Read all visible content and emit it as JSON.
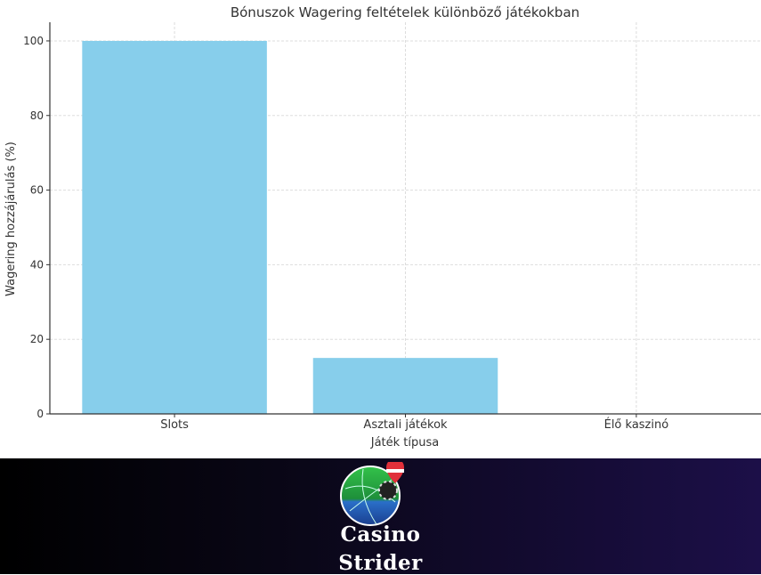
{
  "chart_data": {
    "type": "bar",
    "title": "Bónuszok Wagering feltételek különböző játékokban",
    "xlabel": "Játék típusa",
    "ylabel": "Wagering hozzájárulás (%)",
    "categories": [
      "Slots",
      "Asztali játékok",
      "Élő kaszinó"
    ],
    "values": [
      100,
      15,
      0
    ],
    "ylim": [
      0,
      105
    ],
    "yticks": [
      0,
      20,
      40,
      60,
      80,
      100
    ],
    "grid": true,
    "bar_color": "#87ceeb"
  },
  "banner": {
    "brand_line1": "Casino",
    "brand_line2": "Strider",
    "background": "#1c0f48"
  }
}
